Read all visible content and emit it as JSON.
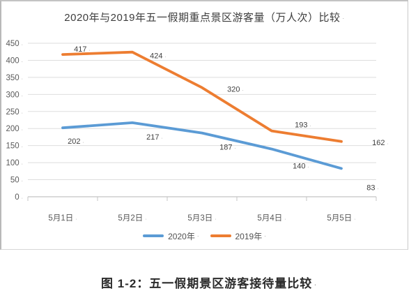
{
  "figure": {
    "caption": "图 1-2：五一假期景区游客接待量比较"
  },
  "chart_data": {
    "type": "line",
    "title": "2020年与2019年五一假期重点景区游客量（万人次）比较",
    "categories": [
      "5月1日",
      "5月2日",
      "5月3日",
      "5月4日",
      "5月5日"
    ],
    "series": [
      {
        "name": "2020年",
        "color": "#5B9BD5",
        "values": [
          202,
          217,
          187,
          140,
          83
        ]
      },
      {
        "name": "2019年",
        "color": "#ED7D31",
        "values": [
          417,
          424,
          320,
          193,
          162
        ]
      }
    ],
    "xlabel": "",
    "ylabel": "",
    "ylim": [
      0,
      450
    ],
    "yticks": [
      0,
      50,
      100,
      150,
      200,
      250,
      300,
      350,
      400,
      450
    ],
    "grid": true,
    "data_labels": true,
    "legend_position": "bottom",
    "gridline_color": "#dedede",
    "axis_color": "#c4c4c4",
    "tick_label_color": "#595959",
    "data_label_color": "#3f3f3f",
    "mark_suffix": "·"
  }
}
